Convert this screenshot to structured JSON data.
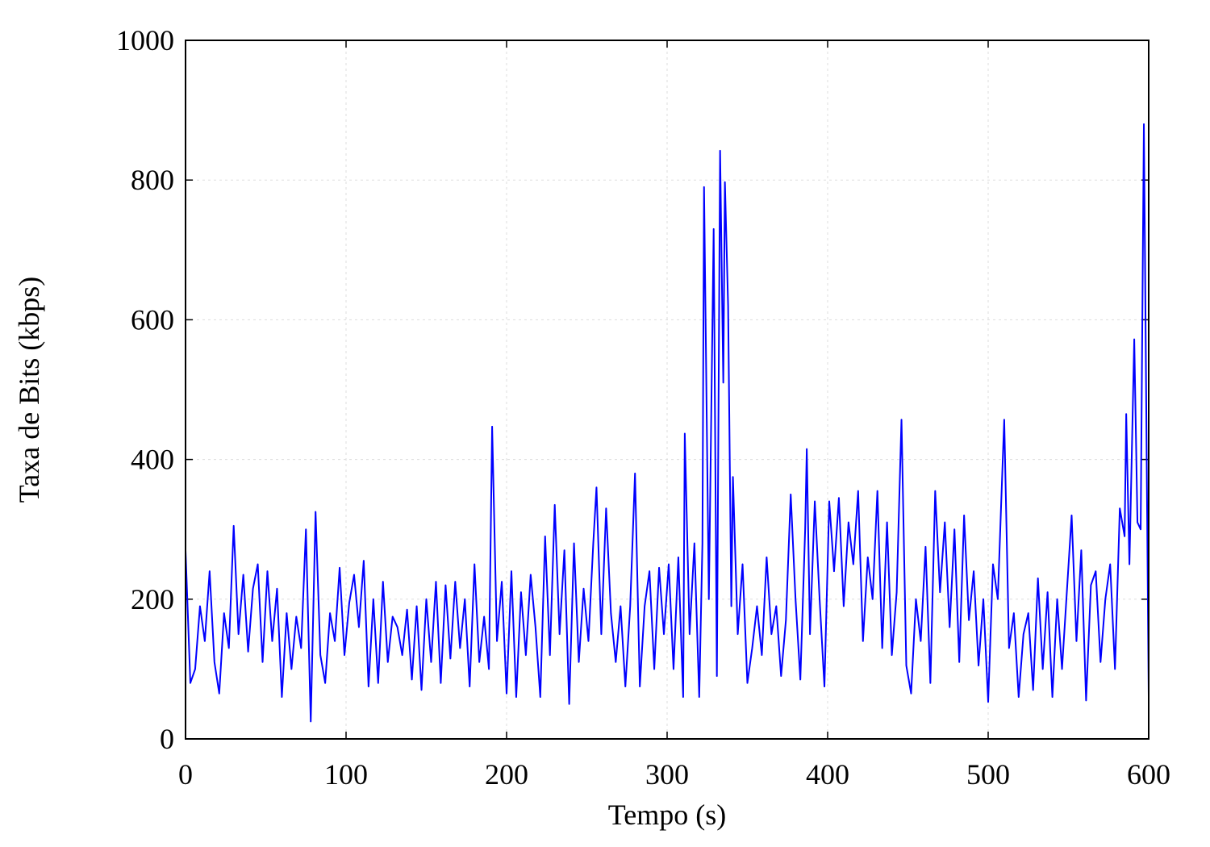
{
  "chart_data": {
    "type": "line",
    "x_label": "Tempo (s)",
    "y_label": "Taxa de Bits (kbps)",
    "x": [
      0,
      3,
      6,
      9,
      12,
      15,
      18,
      21,
      24,
      27,
      30,
      33,
      36,
      39,
      42,
      45,
      48,
      51,
      54,
      57,
      60,
      63,
      66,
      69,
      72,
      75,
      78,
      81,
      84,
      87,
      90,
      93,
      96,
      99,
      102,
      105,
      108,
      111,
      114,
      117,
      120,
      123,
      126,
      129,
      132,
      135,
      138,
      141,
      144,
      147,
      150,
      153,
      156,
      159,
      162,
      165,
      168,
      171,
      174,
      177,
      180,
      183,
      186,
      189,
      191,
      194,
      197,
      200,
      203,
      206,
      209,
      212,
      215,
      218,
      221,
      224,
      227,
      230,
      233,
      236,
      239,
      242,
      245,
      248,
      251,
      254,
      256,
      259,
      262,
      265,
      268,
      271,
      274,
      277,
      280,
      283,
      286,
      289,
      292,
      295,
      298,
      301,
      304,
      307,
      310,
      311,
      314,
      317,
      320,
      322,
      323,
      326,
      329,
      331,
      333,
      335,
      336,
      338,
      340,
      341,
      344,
      347,
      350,
      353,
      356,
      359,
      362,
      365,
      368,
      371,
      374,
      377,
      380,
      383,
      386,
      387,
      389,
      392,
      395,
      398,
      401,
      404,
      407,
      410,
      413,
      416,
      419,
      422,
      425,
      428,
      431,
      434,
      437,
      440,
      443,
      446,
      449,
      452,
      455,
      458,
      461,
      464,
      467,
      470,
      473,
      476,
      479,
      482,
      485,
      488,
      491,
      494,
      497,
      500,
      503,
      506,
      508,
      510,
      513,
      516,
      519,
      522,
      525,
      528,
      531,
      534,
      537,
      540,
      543,
      546,
      549,
      552,
      555,
      558,
      561,
      564,
      567,
      570,
      573,
      576,
      579,
      582,
      585,
      586,
      588,
      591,
      593,
      595,
      597,
      600
    ],
    "series": [
      {
        "color": "#0000ff",
        "values": [
          270,
          80,
          100,
          190,
          140,
          240,
          110,
          65,
          180,
          130,
          305,
          150,
          235,
          125,
          215,
          250,
          110,
          240,
          140,
          215,
          60,
          180,
          100,
          175,
          130,
          300,
          25,
          325,
          120,
          80,
          180,
          140,
          245,
          120,
          195,
          235,
          160,
          255,
          75,
          200,
          80,
          225,
          110,
          175,
          160,
          120,
          185,
          85,
          190,
          70,
          200,
          110,
          225,
          80,
          220,
          115,
          225,
          130,
          200,
          75,
          250,
          110,
          175,
          100,
          447,
          140,
          225,
          65,
          240,
          60,
          210,
          120,
          235,
          160,
          60,
          290,
          120,
          335,
          150,
          270,
          50,
          280,
          110,
          215,
          140,
          280,
          360,
          150,
          330,
          180,
          110,
          190,
          75,
          190,
          380,
          75,
          190,
          240,
          100,
          245,
          150,
          250,
          100,
          260,
          60,
          437,
          150,
          280,
          60,
          280,
          790,
          200,
          730,
          90,
          842,
          510,
          797,
          620,
          190,
          375,
          150,
          250,
          80,
          130,
          190,
          120,
          260,
          150,
          190,
          90,
          170,
          350,
          200,
          85,
          300,
          415,
          150,
          340,
          200,
          75,
          340,
          240,
          345,
          190,
          310,
          250,
          355,
          140,
          260,
          200,
          355,
          130,
          310,
          120,
          210,
          457,
          105,
          65,
          200,
          140,
          275,
          80,
          355,
          210,
          310,
          160,
          300,
          110,
          320,
          170,
          240,
          105,
          200,
          53,
          250,
          200,
          330,
          457,
          130,
          180,
          60,
          150,
          180,
          70,
          230,
          100,
          210,
          60,
          200,
          100,
          210,
          320,
          140,
          270,
          55,
          220,
          240,
          110,
          200,
          250,
          100,
          330,
          290,
          465,
          250,
          572,
          310,
          300,
          880,
          60
        ]
      }
    ],
    "xlim": [
      0,
      600
    ],
    "xticks": [
      0,
      100,
      200,
      300,
      400,
      500,
      600
    ],
    "ylim": [
      0,
      1000
    ],
    "yticks": [
      0,
      200,
      400,
      600,
      800,
      1000
    ],
    "grid": true
  }
}
